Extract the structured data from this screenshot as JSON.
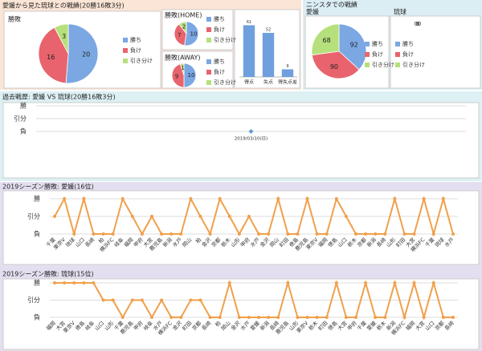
{
  "panels": {
    "match_title": "愛媛から見た琉球との戦績(20勝16敗3分)",
    "stadium_title": "ニンスタでの戦績"
  },
  "chart_data": [
    {
      "type": "pie",
      "title": "勝敗",
      "categories": [
        "勝ち",
        "負け",
        "引き分け"
      ],
      "values": [
        20,
        16,
        3
      ],
      "colors": [
        "#7ba7e3",
        "#e8636d",
        "#b6e07c"
      ]
    },
    {
      "type": "pie",
      "title": "勝敗(HOME)",
      "categories": [
        "勝ち",
        "負け",
        "引き分け"
      ],
      "values": [
        10,
        7,
        2
      ],
      "colors": [
        "#7ba7e3",
        "#e8636d",
        "#b6e07c"
      ]
    },
    {
      "type": "pie",
      "title": "勝敗(AWAY)",
      "categories": [
        "勝ち",
        "負け",
        "引き分け"
      ],
      "values": [
        10,
        9,
        1
      ],
      "colors": [
        "#7ba7e3",
        "#e8636d",
        "#b6e07c"
      ]
    },
    {
      "type": "bar",
      "categories": [
        "得点",
        "失点",
        "得失点差"
      ],
      "values": [
        61,
        52,
        9
      ],
      "color": "#6f9fdc",
      "ylim": [
        0,
        70
      ]
    },
    {
      "type": "pie",
      "title": "愛媛",
      "categories": [
        "勝ち",
        "負け",
        "引き分け"
      ],
      "values": [
        92,
        90,
        68
      ],
      "colors": [
        "#7ba7e3",
        "#e8636d",
        "#b6e07c"
      ]
    },
    {
      "type": "pie",
      "title": "琉球",
      "categories": [
        "勝ち",
        "負け",
        "引き分け"
      ],
      "values": [
        0,
        0,
        0
      ],
      "colors": [
        "#7ba7e3",
        "#e8636d",
        "#b6e07c"
      ]
    },
    {
      "type": "line",
      "title": "過去戦歴: 愛媛 VS 琉球(20勝16敗3分)",
      "categories": [
        "2019/03/10(日)"
      ],
      "values": [
        0
      ],
      "color": "#5b9bd5",
      "ylim": [
        0,
        2
      ],
      "yticks": [
        {
          "value": 2,
          "label": "勝"
        },
        {
          "value": 1,
          "label": "引分"
        },
        {
          "value": 0,
          "label": "負"
        }
      ],
      "grid": true
    },
    {
      "type": "line",
      "title": "2019シーズン勝敗: 愛媛(16位)",
      "categories": [
        "千葉",
        "東京V",
        "琉球",
        "山口",
        "長崎",
        "柏",
        "横浜FC",
        "岐阜",
        "福岡",
        "甲府",
        "大宮",
        "鹿児島",
        "新潟",
        "水戸",
        "岡山",
        "柏",
        "金沢",
        "京都",
        "栃木",
        "山形",
        "甲府",
        "水戸",
        "金沢",
        "岡山",
        "町田",
        "徳島",
        "鹿児島",
        "東京V",
        "福岡",
        "徳島",
        "山口",
        "栃木",
        "京都",
        "新潟",
        "長崎",
        "山形",
        "町田",
        "大宮",
        "横浜FC",
        "千葉",
        "琉球",
        "水戸"
      ],
      "values": [
        1,
        2,
        0,
        2,
        0,
        0,
        0,
        2,
        1,
        0,
        1,
        0,
        0,
        0,
        2,
        1,
        0,
        2,
        1,
        0,
        1,
        0,
        0,
        2,
        0,
        0,
        2,
        0,
        0,
        2,
        1,
        0,
        0,
        0,
        0,
        2,
        0,
        0,
        2,
        0,
        2,
        0
      ],
      "color": "#f0a04b",
      "ylim": [
        0,
        2
      ],
      "yticks": [
        {
          "value": 2,
          "label": "勝"
        },
        {
          "value": 1,
          "label": "引分"
        },
        {
          "value": 0,
          "label": "負"
        }
      ],
      "grid": true
    },
    {
      "type": "line",
      "title": "2019シーズン勝敗: 琉球(15位)",
      "categories": [
        "福岡",
        "大宮",
        "東京V",
        "徳島",
        "岐阜",
        "山口",
        "山形",
        "千葉",
        "鹿児島",
        "甲府",
        "岐阜",
        "水戸",
        "横浜FC",
        "金沢",
        "町田",
        "京都",
        "長崎",
        "柏",
        "岡山",
        "金沢",
        "水戸",
        "愛媛",
        "新潟",
        "長崎",
        "鹿児島",
        "山形",
        "東京V",
        "栃木",
        "町田",
        "徳島",
        "大宮",
        "甲府",
        "千葉",
        "愛媛",
        "栃木",
        "新潟",
        "横浜FC",
        "福岡",
        "大宮",
        "山口",
        "京都",
        "長崎"
      ],
      "values": [
        2,
        2,
        2,
        2,
        2,
        1,
        1,
        0,
        1,
        1,
        0,
        1,
        0,
        0,
        1,
        1,
        0,
        0,
        2,
        0,
        0,
        0,
        0,
        0,
        2,
        0,
        0,
        0,
        0,
        2,
        0,
        0,
        2,
        0,
        0,
        2,
        0,
        2,
        0,
        2,
        0,
        0
      ],
      "color": "#f0a04b",
      "ylim": [
        0,
        2
      ],
      "yticks": [
        {
          "value": 2,
          "label": "勝"
        },
        {
          "value": 1,
          "label": "引分"
        },
        {
          "value": 0,
          "label": "負"
        }
      ],
      "grid": true
    }
  ]
}
